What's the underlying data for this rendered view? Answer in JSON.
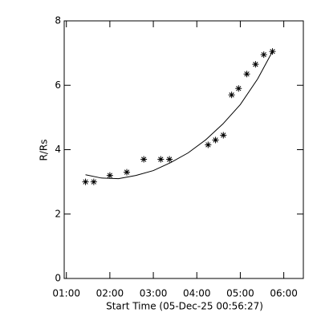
{
  "chart_data": {
    "type": "scatter",
    "x_label": "Start Time (05-Dec-25 00:56:27)",
    "y_label": "R/Rs",
    "x": [
      1.44,
      1.63,
      2.0,
      2.39,
      2.78,
      3.17,
      3.37,
      4.26,
      4.43,
      4.61,
      4.8,
      4.96,
      5.15,
      5.35,
      5.54,
      5.74
    ],
    "values": [
      3.0,
      3.0,
      3.2,
      3.3,
      3.7,
      3.7,
      3.7,
      4.15,
      4.3,
      4.45,
      5.7,
      5.9,
      6.35,
      6.65,
      6.95,
      7.05
    ],
    "fit": {
      "x": [
        1.44,
        1.8,
        2.2,
        2.6,
        3.0,
        3.4,
        3.8,
        4.2,
        4.6,
        5.0,
        5.4,
        5.74
      ],
      "values": [
        3.22,
        3.12,
        3.1,
        3.2,
        3.35,
        3.6,
        3.9,
        4.3,
        4.8,
        5.4,
        6.2,
        7.05
      ]
    },
    "color": "#000000",
    "xlim": [
      0.95,
      6.45
    ],
    "xticks": [
      {
        "value": 1,
        "label": "01:00"
      },
      {
        "value": 2,
        "label": "02:00"
      },
      {
        "value": 3,
        "label": "03:00"
      },
      {
        "value": 4,
        "label": "04:00"
      },
      {
        "value": 5,
        "label": "05:00"
      },
      {
        "value": 6,
        "label": "06:00"
      }
    ],
    "ylim": [
      0,
      8
    ],
    "yticks": [
      0,
      2,
      4,
      6,
      8
    ]
  }
}
